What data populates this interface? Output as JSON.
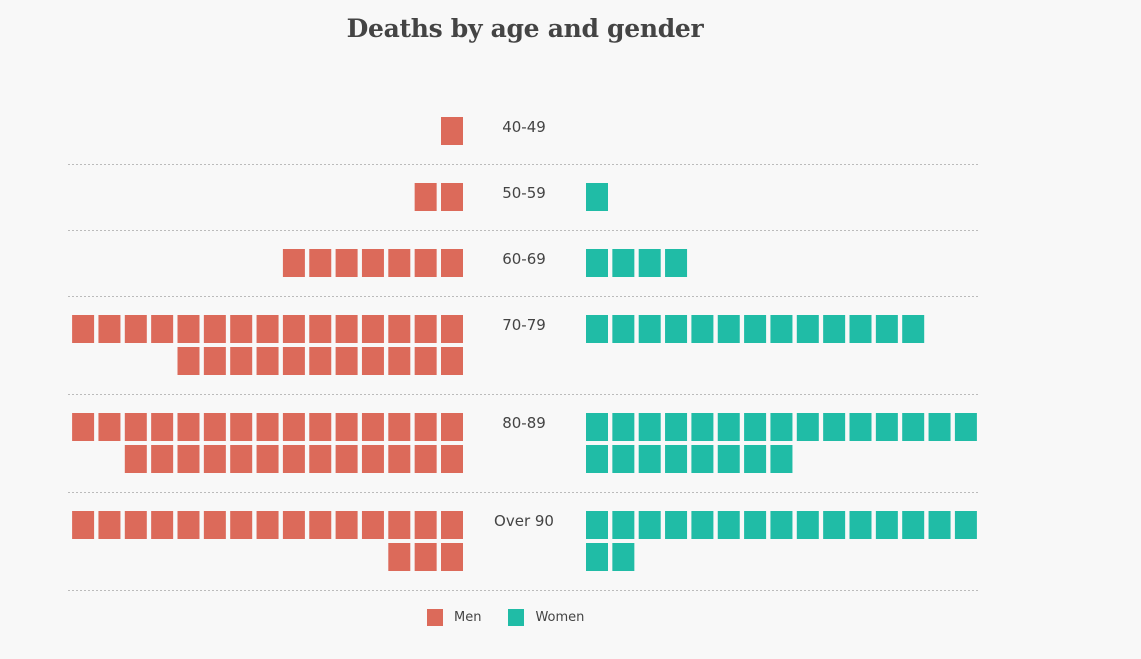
{
  "chart_data": {
    "type": "waffle",
    "title": "Deaths by age and gender",
    "unit": "one square = one death",
    "categories": [
      "40-49",
      "50-59",
      "60-69",
      "70-79",
      "80-89",
      "Over 90"
    ],
    "series": [
      {
        "name": "Men",
        "color": "#dc6a5a",
        "values": [
          1,
          2,
          7,
          26,
          28,
          18
        ]
      },
      {
        "name": "Women",
        "color": "#20bca6",
        "values": [
          0,
          1,
          4,
          13,
          23,
          17
        ]
      }
    ],
    "squares_per_row": 15,
    "legend": [
      "Men",
      "Women"
    ],
    "legend_position": "bottom-center"
  }
}
